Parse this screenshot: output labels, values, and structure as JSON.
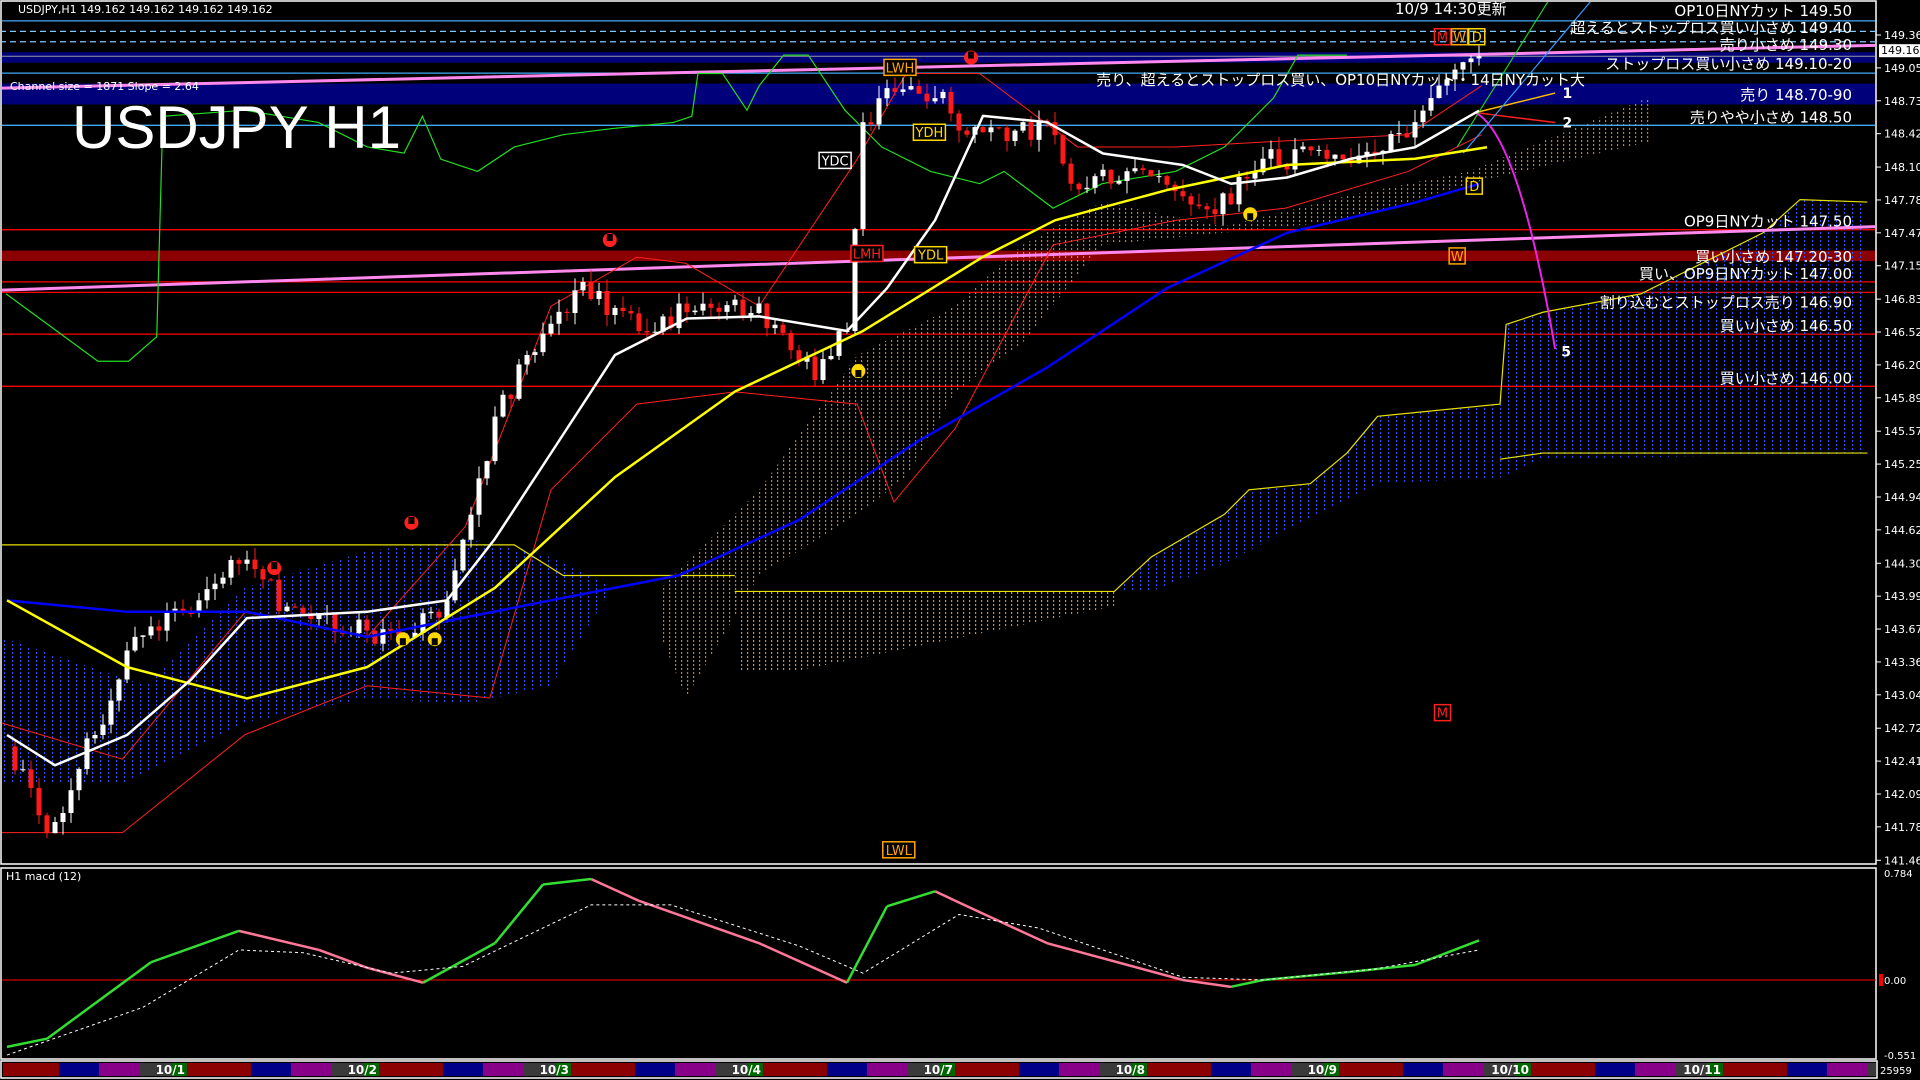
{
  "window": {
    "symbol_info": "USDJPY,H1  149.162 149.162 149.162 149.162",
    "title_overlay": "USDJPY H1",
    "channel_info": "Channel size = 1871 Slope = 2.64",
    "update_note": "10/9 14:30更新"
  },
  "price_axis": {
    "ticks": [
      "149.365",
      "149.050",
      "148.735",
      "148.420",
      "148.100",
      "147.785",
      "147.470",
      "147.155",
      "146.835",
      "146.520",
      "146.205",
      "145.890",
      "145.570",
      "145.255",
      "144.940",
      "144.625",
      "144.305",
      "143.990",
      "143.675",
      "143.360",
      "143.045",
      "142.725",
      "142.410",
      "142.095",
      "141.780",
      "141.460"
    ],
    "current_price": "149.162"
  },
  "levels": [
    {
      "label": "OP10日NYカット 149.50",
      "price": 149.5,
      "color": "#3fa9f5",
      "style": "solid"
    },
    {
      "label": "超えるとストップロス買い小さめ 149.40",
      "price": 149.4,
      "color": "#7cc8ff",
      "style": "dashed"
    },
    {
      "label": "売り小さめ 149.30",
      "price": 149.3,
      "color": "#7cc8ff",
      "style": "dashed"
    },
    {
      "label": "ストップロス買い小さめ 149.10-20",
      "price_from": 149.1,
      "price_to": 149.2,
      "color": "#00007a",
      "style": "band"
    },
    {
      "label": "売り、超えるとストップロス買い、OP10日NYカット・14日NYカット大",
      "price": 149.0,
      "color": "#3fa9f5",
      "style": "solid",
      "align": "left"
    },
    {
      "label": "売り 148.70-90",
      "price_from": 148.7,
      "price_to": 148.9,
      "color": "#00007a",
      "style": "band"
    },
    {
      "label": "売りやや小さめ 148.50",
      "price": 148.5,
      "color": "#3fa9f5",
      "style": "solid"
    },
    {
      "label": "OP9日NYカット 147.50",
      "price": 147.5,
      "color": "#ff0000",
      "style": "solid"
    },
    {
      "label": "買い小さめ 147.20-30",
      "price_from": 147.2,
      "price_to": 147.3,
      "color": "#8b0000",
      "style": "band"
    },
    {
      "label": "買い、OP9日NYカット 147.00",
      "price": 147.0,
      "color": "#ff0000",
      "style": "solid"
    },
    {
      "label": "割り込むとストップロス売り 146.90",
      "price": 146.9,
      "color": "#ff0000",
      "style": "solid"
    },
    {
      "label": "買い小さめ 146.50",
      "price": 146.5,
      "color": "#ff0000",
      "style": "solid"
    },
    {
      "label": "買い小さめ 146.00",
      "price": 146.0,
      "color": "#ff0000",
      "style": "solid"
    }
  ],
  "reference_labels": [
    {
      "text": "LWH",
      "color": "#ffa500"
    },
    {
      "text": "YDH",
      "color": "#ffd800"
    },
    {
      "text": "YDC",
      "color": "#ffffff"
    },
    {
      "text": "LMH",
      "color": "#ff2020"
    },
    {
      "text": "YDL",
      "color": "#ffd800"
    },
    {
      "text": "LWL",
      "color": "#ffa500"
    },
    {
      "text": "M",
      "color": "#ff2020"
    },
    {
      "text": "W",
      "color": "#ffa500"
    },
    {
      "text": "D",
      "color": "#ffd800"
    },
    {
      "text": "M",
      "color": "#ff2020"
    },
    {
      "text": "W",
      "color": "#ffa500"
    },
    {
      "text": "D",
      "color": "#ffd800"
    }
  ],
  "projection_labels": [
    "1",
    "2",
    "5"
  ],
  "macd": {
    "title": "H1  macd (12)",
    "ticks": [
      "0.784",
      "0.00",
      "-0.551"
    ]
  },
  "date_axis": {
    "labels": [
      "10/1",
      "10/2",
      "10/3",
      "10/4",
      "10/7",
      "10/8",
      "10/9",
      "10/10",
      "10/11"
    ],
    "bar_count": "25959"
  },
  "colors": {
    "bull": "#ffffff",
    "bear": "#ff1a1a",
    "ma_fast": "#ffffff",
    "ma_mid": "#ffff00",
    "ma_slow": "#0000ff",
    "macd_up": "#33dd33",
    "macd_down": "#ff7799"
  },
  "chart_data": {
    "type": "candlestick",
    "symbol": "USDJPY",
    "timeframe": "H1",
    "ylim": [
      141.46,
      149.5
    ],
    "close": [
      [
        "9/30 03:00",
        142.55
      ],
      [
        "9/30 08:00",
        141.72
      ],
      [
        "9/30 14:00",
        142.66
      ],
      [
        "9/30 19:00",
        143.6
      ],
      [
        "10/1 03:00",
        143.95
      ],
      [
        "10/1 08:00",
        144.3
      ],
      [
        "10/1 14:00",
        143.89
      ],
      [
        "10/2 00:00",
        143.66
      ],
      [
        "10/2 05:00",
        143.6
      ],
      [
        "10/2 10:00",
        143.95
      ],
      [
        "10/2 13:00",
        144.77
      ],
      [
        "10/2 16:00",
        145.71
      ],
      [
        "10/2 20:00",
        146.3
      ],
      [
        "10/3 03:00",
        147.0
      ],
      [
        "10/3 10:00",
        146.53
      ],
      [
        "10/3 16:00",
        146.71
      ],
      [
        "10/3 22:00",
        146.83
      ],
      [
        "10/4 03:00",
        146.59
      ],
      [
        "10/4 08:00",
        146.06
      ],
      [
        "10/4 12:00",
        146.53
      ],
      [
        "10/4 14:00",
        148.53
      ],
      [
        "10/4 18:00",
        148.82
      ],
      [
        "10/7 00:00",
        148.82
      ],
      [
        "10/7 03:00",
        148.41
      ],
      [
        "10/7 08:00",
        148.35
      ],
      [
        "10/7 13:00",
        148.53
      ],
      [
        "10/7 16:00",
        147.94
      ],
      [
        "10/7 23:00",
        148.06
      ],
      [
        "10/8 06:00",
        147.82
      ],
      [
        "10/8 10:00",
        147.65
      ],
      [
        "10/8 16:00",
        148.18
      ],
      [
        "10/9 00:00",
        148.18
      ],
      [
        "10/9 06:00",
        148.23
      ],
      [
        "10/9 11:00",
        148.53
      ],
      [
        "10/9 15:00",
        148.94
      ],
      [
        "10/9 19:00",
        149.162
      ]
    ],
    "ma_white": [
      [
        "9/30 03:00",
        142.66
      ],
      [
        "9/30 09:00",
        142.37
      ],
      [
        "9/30 18:00",
        142.66
      ],
      [
        "10/1 02:00",
        143.19
      ],
      [
        "10/1 09:00",
        143.78
      ],
      [
        "10/2 00:00",
        143.84
      ],
      [
        "10/2 10:00",
        143.95
      ],
      [
        "10/2 16:00",
        144.54
      ],
      [
        "10/2 23:00",
        145.36
      ],
      [
        "10/3 07:00",
        146.3
      ],
      [
        "10/3 16:00",
        146.65
      ],
      [
        "10/4 01:00",
        146.67
      ],
      [
        "10/4 12:00",
        146.53
      ],
      [
        "10/4 17:00",
        146.94
      ],
      [
        "10/4 23:00",
        147.59
      ],
      [
        "10/7 05:00",
        148.59
      ],
      [
        "10/7 13:00",
        148.53
      ],
      [
        "10/7 20:00",
        148.23
      ],
      [
        "10/8 06:00",
        148.12
      ],
      [
        "10/8 12:00",
        147.94
      ],
      [
        "10/8 19:00",
        148.0
      ],
      [
        "10/9 03:00",
        148.18
      ],
      [
        "10/9 11:00",
        148.29
      ],
      [
        "10/9 19:00",
        148.64
      ]
    ],
    "ma_yellow": [
      [
        "9/30 03:00",
        143.95
      ],
      [
        "9/30 18:00",
        143.31
      ],
      [
        "10/1 09:00",
        143.01
      ],
      [
        "10/2 00:00",
        143.31
      ],
      [
        "10/2 16:00",
        144.07
      ],
      [
        "10/3 07:00",
        145.13
      ],
      [
        "10/3 22:00",
        145.95
      ],
      [
        "10/4 14:00",
        146.53
      ],
      [
        "10/7 05:00",
        147.24
      ],
      [
        "10/7 14:00",
        147.59
      ],
      [
        "10/8 04:00",
        147.88
      ],
      [
        "10/8 19:00",
        148.12
      ],
      [
        "10/9 11:00",
        148.18
      ],
      [
        "10/9 20:00",
        148.29
      ]
    ],
    "ma_blue": [
      [
        "9/30 03:00",
        143.95
      ],
      [
        "9/30 18:00",
        143.84
      ],
      [
        "10/1 09:00",
        143.84
      ],
      [
        "10/2 00:00",
        143.6
      ],
      [
        "10/2 23:00",
        143.95
      ],
      [
        "10/3 15:00",
        144.19
      ],
      [
        "10/4 06:00",
        144.72
      ],
      [
        "10/4 21:00",
        145.48
      ],
      [
        "10/7 13:00",
        146.18
      ],
      [
        "10/8 04:00",
        146.94
      ],
      [
        "10/8 19:00",
        147.47
      ],
      [
        "10/9 11:00",
        147.76
      ],
      [
        "10/9 19:00",
        147.94
      ]
    ],
    "macd": [
      [
        "9/30 03:00",
        -0.49
      ],
      [
        "9/30 08:00",
        -0.43
      ],
      [
        "9/30 21:00",
        0.13
      ],
      [
        "10/1 08:00",
        0.36
      ],
      [
        "10/1 18:00",
        0.22
      ],
      [
        "10/2 00:00",
        0.09
      ],
      [
        "10/2 07:00",
        -0.02
      ],
      [
        "10/2 16:00",
        0.27
      ],
      [
        "10/2 22:00",
        0.7
      ],
      [
        "10/3 04:00",
        0.74
      ],
      [
        "10/3 10:00",
        0.58
      ],
      [
        "10/4 01:00",
        0.27
      ],
      [
        "10/4 12:00",
        -0.02
      ],
      [
        "10/4 17:00",
        0.54
      ],
      [
        "10/4 23:00",
        0.65
      ],
      [
        "10/7 03:00",
        0.54
      ],
      [
        "10/7 13:00",
        0.27
      ],
      [
        "10/8 06:00",
        0.0
      ],
      [
        "10/8 12:00",
        -0.05
      ],
      [
        "10/8 16:00",
        0.0
      ],
      [
        "10/9 03:00",
        0.06
      ],
      [
        "10/9 11:00",
        0.11
      ],
      [
        "10/9 19:00",
        0.29
      ]
    ],
    "signal": [
      [
        "9/30 03:00",
        -0.55
      ],
      [
        "9/30 20:00",
        -0.2
      ],
      [
        "10/1 08:00",
        0.22
      ],
      [
        "10/1 16:00",
        0.2
      ],
      [
        "10/2 03:00",
        0.05
      ],
      [
        "10/2 12:00",
        0.1
      ],
      [
        "10/3 04:00",
        0.55
      ],
      [
        "10/3 14:00",
        0.55
      ],
      [
        "10/4 06:00",
        0.25
      ],
      [
        "10/4 14:00",
        0.05
      ],
      [
        "10/7 02:00",
        0.48
      ],
      [
        "10/7 12:00",
        0.38
      ],
      [
        "10/8 06:00",
        0.02
      ],
      [
        "10/8 16:00",
        0.0
      ],
      [
        "10/9 06:00",
        0.08
      ],
      [
        "10/9 19:00",
        0.22
      ]
    ],
    "macd_ylim": [
      -0.551,
      0.784
    ]
  }
}
